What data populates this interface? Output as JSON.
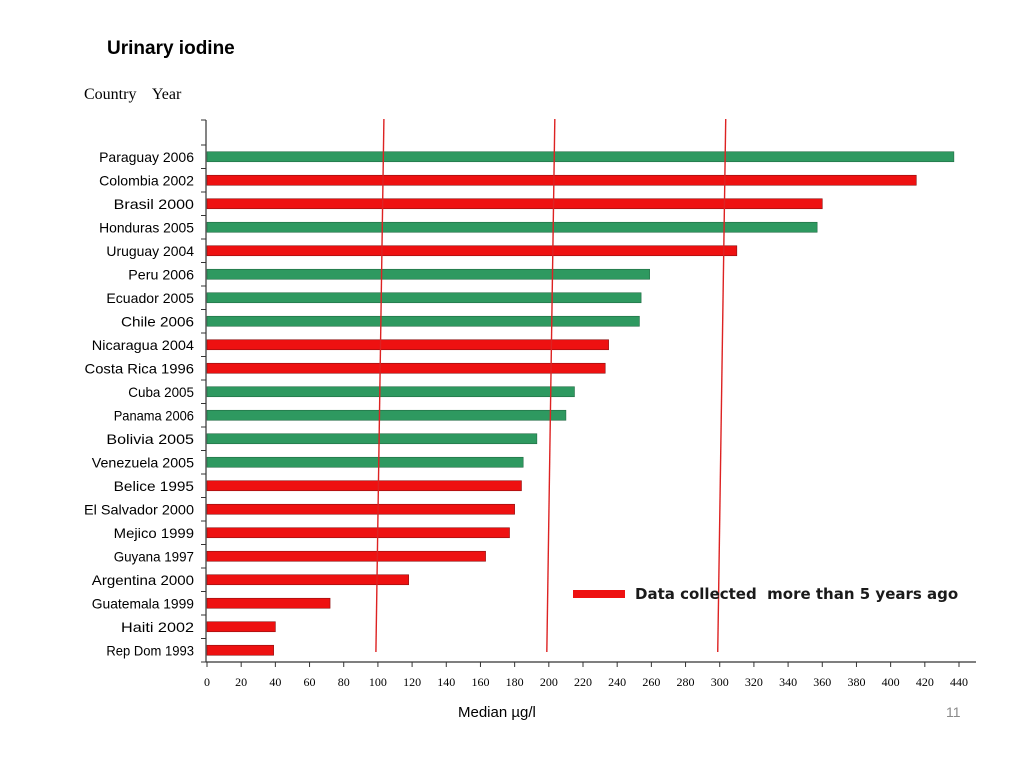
{
  "slide": {
    "title": "Urinary iodine",
    "column_header": "Country    Year",
    "page_number": "11"
  },
  "legend": {
    "label": "Data collected  more than 5 years ago",
    "color": "#ee1111"
  },
  "colors": {
    "recent": "#2e9960",
    "old": "#ee1111",
    "threshold_line": "#dd2222",
    "axis": "#333333"
  },
  "chart_data": {
    "type": "bar",
    "orientation": "horizontal",
    "title": "Urinary iodine",
    "xlabel": "Median  µg/l",
    "ylabel": "Country    Year",
    "xlim": [
      0,
      440
    ],
    "xticks": [
      0,
      20,
      40,
      60,
      80,
      100,
      120,
      140,
      160,
      180,
      200,
      220,
      240,
      260,
      280,
      300,
      320,
      340,
      360,
      380,
      400,
      420,
      440
    ],
    "reference_lines": [
      100,
      200,
      300
    ],
    "categories": [
      "Paraguay 2006",
      "Colombia 2002",
      "Brasil 2000",
      "Honduras 2005",
      "Uruguay 2004",
      "Peru 2006",
      "Ecuador 2005",
      "Chile 2006",
      "Nicaragua 2004",
      "Costa Rica 1996",
      "Cuba 2005",
      "Panama 2006",
      "Bolivia 2005",
      "Venezuela 2005",
      "Belice 1995",
      "El Salvador 2000",
      "Mejico 1999",
      "Guyana 1997",
      "Argentina 2000",
      "Guatemala 1999",
      "Haiti 2002",
      "Rep Dom 1993"
    ],
    "values": [
      437,
      415,
      360,
      357,
      310,
      259,
      254,
      253,
      235,
      233,
      215,
      210,
      193,
      185,
      184,
      180,
      177,
      163,
      118,
      72,
      40,
      39
    ],
    "old_data": [
      false,
      true,
      true,
      false,
      true,
      false,
      false,
      false,
      true,
      true,
      false,
      false,
      false,
      false,
      true,
      true,
      true,
      true,
      true,
      true,
      true,
      true
    ]
  }
}
